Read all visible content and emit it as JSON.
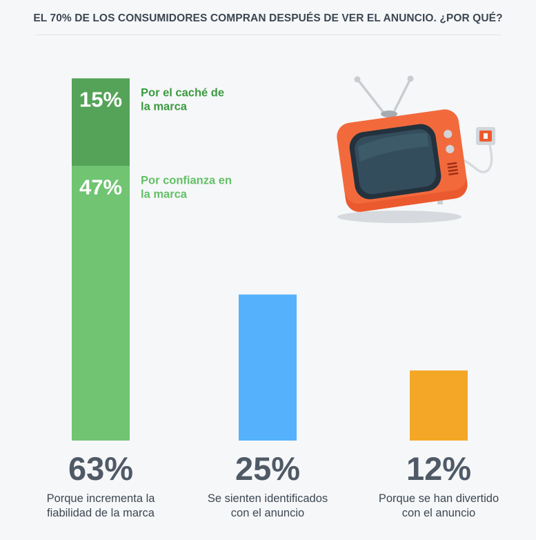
{
  "title": "EL 70% DE LOS CONSUMIDORES COMPRAN DESPUÉS DE VER EL ANUNCIO. ¿POR QUÉ?",
  "colors": {
    "green_dark": "#54a358",
    "green_light": "#70c472",
    "blue": "#55b1fc",
    "orange": "#f4a727",
    "text_dark": "#4f5a66",
    "label_dark_green": "#3b9a40",
    "label_light_green": "#63bf66"
  },
  "chart_data": {
    "type": "bar",
    "title": "EL 70% DE LOS CONSUMIDORES COMPRAN DESPUÉS DE VER EL ANUNCIO. ¿POR QUÉ?",
    "categories": [
      "Porque incrementa la fiabilidad de la marca",
      "Se sienten identificados con el anuncio",
      "Porque se han divertido con el anuncio"
    ],
    "values": [
      63,
      25,
      12
    ],
    "value_labels": [
      "63%",
      "25%",
      "12%"
    ],
    "category_lines": [
      [
        "Porque incrementa la",
        "fiabilidad de la marca"
      ],
      [
        "Se sienten identificados",
        "con el anuncio"
      ],
      [
        "Porque se han divertido",
        "con el anuncio"
      ]
    ],
    "bar_colors": [
      "#70c472",
      "#55b1fc",
      "#f4a727"
    ],
    "stack_first_bar": [
      {
        "value": 47,
        "label": "47%",
        "description_lines": [
          "Por confianza en",
          "la marca"
        ],
        "color": "#70c472",
        "text_color": "#63bf66"
      },
      {
        "value": 15,
        "label": "15%",
        "description_lines": [
          "Por el caché de",
          "la marca"
        ],
        "color": "#54a358",
        "text_color": "#3b9a40"
      }
    ],
    "ylim": [
      0,
      63
    ],
    "grid": false,
    "legend": "none"
  },
  "illustration": {
    "icon": "retro-tv-icon",
    "plug_icon": "wall-socket-icon"
  }
}
